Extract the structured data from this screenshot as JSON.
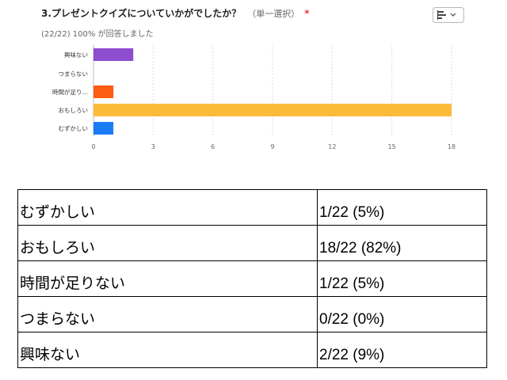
{
  "question": {
    "title": "3.プレゼントクイズについていかがでしたか？",
    "type_label": "（単一選択）",
    "required_mark": "*",
    "response_stat": "(22/22) 100% が回答しました"
  },
  "chart_toggle": {
    "icon": "bar-chart-icon",
    "caret": "chevron-down-icon"
  },
  "chart_data": {
    "type": "bar",
    "orientation": "horizontal",
    "categories": [
      "興味ない",
      "つまらない",
      "時間が足り…",
      "おもしろい",
      "むずかしい"
    ],
    "values": [
      2,
      0,
      1,
      18,
      1
    ],
    "colors": [
      "#8e4ccf",
      "#cccccc",
      "#fb5b12",
      "#fcbb39",
      "#1a7cf4"
    ],
    "xticks": [
      "0",
      "3",
      "6",
      "9",
      "12",
      "15",
      "18"
    ],
    "xlim": [
      0,
      18
    ],
    "grid": true,
    "title": "",
    "xlabel": "",
    "ylabel": ""
  },
  "results_table": [
    {
      "label": "むずかしい",
      "value": "1/22 (5%)"
    },
    {
      "label": "おもしろい",
      "value": "18/22 (82%)"
    },
    {
      "label": "時間が足りない",
      "value": "1/22 (5%)"
    },
    {
      "label": "つまらない",
      "value": "0/22 (0%)"
    },
    {
      "label": "興味ない",
      "value": "2/22 (9%)"
    }
  ]
}
